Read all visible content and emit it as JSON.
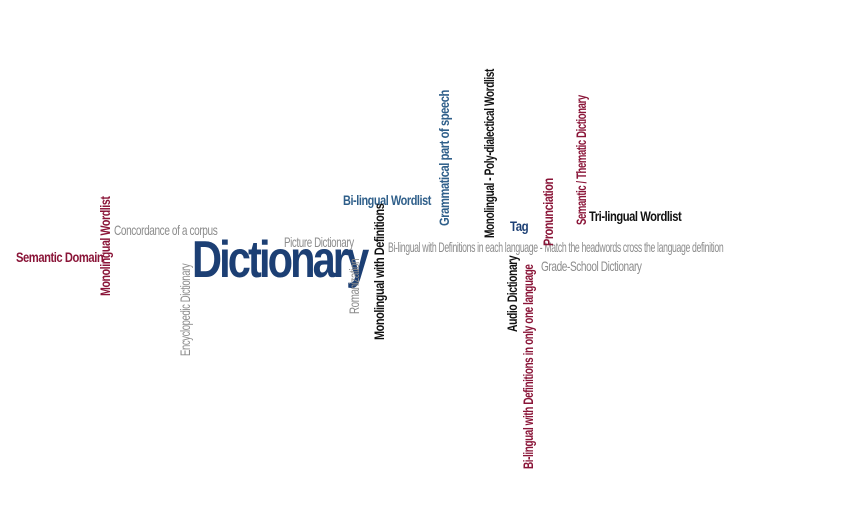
{
  "colors": {
    "navy": "#1c3f74",
    "blue": "#2f5f8a",
    "maroon": "#8a1538",
    "gray": "#8c8c8c",
    "black": "#111111"
  },
  "words": {
    "dictionary": "Dictionary",
    "semantic_domain": "Semantic Domain",
    "monolingual_wordlist": "Monolingual Wordlist",
    "concordance": "Concordance of a corpus",
    "encyclopedic_dictionary": "Encyclopedic Dictionary",
    "picture_dictionary": "Picture Dictionary",
    "romanization": "Romanization",
    "monolingual_with_definitions": "Monolingual with Definitions",
    "bilingual_wordlist": "Bi-lingual Wordlist",
    "grammatical_part_of_speech": "Grammatical part of speech",
    "monolingual_polydialectical": "Monolingual - Poly-dialectical Wordlist",
    "bilingual_with_definitions_each": "Bi-lingual with Definitions in each language - Match the headwords cross the language definition",
    "tag": "Tag",
    "pronunciation": "Pronunciation",
    "semantic_thematic_dictionary": "Semantic / Thematic Dictionary",
    "trilingual_wordlist": "Tri-lingual Wordlist",
    "audio_dictionary": "Audio Dictionary",
    "bilingual_with_definitions_one": "Bi-lingual with Definitions in only one language",
    "grade_school_dictionary": "Grade-School Dictionary"
  }
}
